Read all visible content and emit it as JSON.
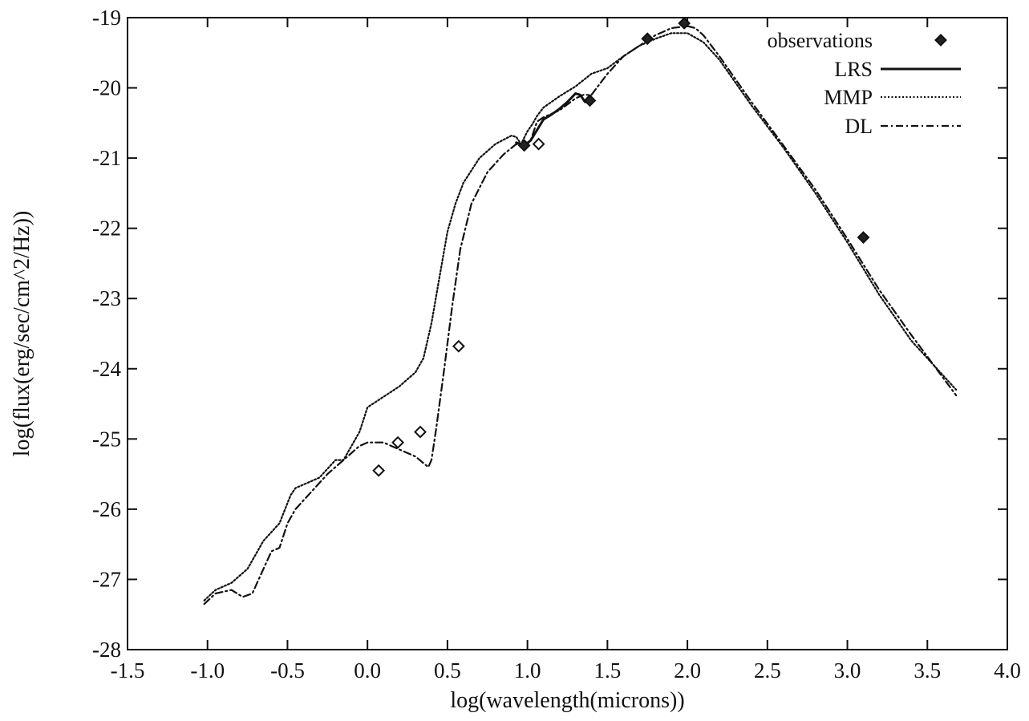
{
  "chart_data": {
    "type": "line",
    "title": "",
    "xlabel": "log(wavelength(microns))",
    "ylabel": "log(flux(erg/sec/cm^2/Hz))",
    "xlim": [
      -1.5,
      4.0
    ],
    "ylim": [
      -28,
      -19
    ],
    "xticks": [
      -1.5,
      -1.0,
      -0.5,
      0.0,
      0.5,
      1.0,
      1.5,
      2.0,
      2.5,
      3.0,
      3.5,
      4.0
    ],
    "xtick_labels": [
      "-1.5",
      "-1.0",
      "-0.5",
      "0.0",
      "0.5",
      "1.0",
      "1.5",
      "2.0",
      "2.5",
      "3.0",
      "3.5",
      "4.0"
    ],
    "yticks": [
      -19,
      -20,
      -21,
      -22,
      -23,
      -24,
      -25,
      -26,
      -27,
      -28
    ],
    "ytick_labels": [
      "-19",
      "-20",
      "-21",
      "-22",
      "-23",
      "-24",
      "-25",
      "-26",
      "-27",
      "-28"
    ],
    "grid": false,
    "legend_position": "top-right",
    "legend": [
      "observations",
      "LRS",
      "MMP",
      "DL"
    ],
    "series": [
      {
        "name": "observations",
        "kind": "scatter",
        "marker": "diamond",
        "x": [
          0.07,
          0.19,
          0.33,
          0.57,
          0.98,
          1.07,
          1.39,
          1.75,
          1.98,
          3.1
        ],
        "y": [
          -25.45,
          -25.05,
          -24.9,
          -23.68,
          -20.82,
          -20.8,
          -20.18,
          -19.3,
          -19.08,
          -22.13
        ],
        "filled": [
          false,
          false,
          false,
          false,
          true,
          false,
          true,
          true,
          true,
          true
        ]
      },
      {
        "name": "LRS",
        "kind": "line",
        "style": "solid",
        "x": [
          0.93,
          0.98,
          1.02,
          1.06,
          1.1,
          1.15,
          1.2,
          1.25,
          1.3,
          1.33,
          1.36
        ],
        "y": [
          -20.78,
          -20.82,
          -20.75,
          -20.6,
          -20.45,
          -20.38,
          -20.3,
          -20.2,
          -20.08,
          -20.1,
          -20.2
        ]
      },
      {
        "name": "MMP",
        "kind": "line",
        "style": "dotted",
        "x": [
          -1.02,
          -0.95,
          -0.85,
          -0.75,
          -0.65,
          -0.55,
          -0.48,
          -0.45,
          -0.4,
          -0.3,
          -0.2,
          -0.15,
          -0.05,
          0.0,
          0.1,
          0.2,
          0.25,
          0.3,
          0.35,
          0.4,
          0.45,
          0.5,
          0.55,
          0.6,
          0.7,
          0.8,
          0.9,
          0.93,
          0.96,
          1.0,
          1.03,
          1.06,
          1.1,
          1.2,
          1.3,
          1.4,
          1.5,
          1.6,
          1.7,
          1.8,
          1.9,
          2.0,
          2.1,
          2.2,
          2.4,
          2.6,
          2.8,
          3.0,
          3.2,
          3.4,
          3.68
        ],
        "y": [
          -27.3,
          -27.15,
          -27.05,
          -26.85,
          -26.45,
          -26.2,
          -25.8,
          -25.7,
          -25.65,
          -25.55,
          -25.3,
          -25.3,
          -24.9,
          -24.55,
          -24.4,
          -24.25,
          -24.15,
          -24.05,
          -23.85,
          -23.35,
          -22.7,
          -22.05,
          -21.65,
          -21.35,
          -21.0,
          -20.8,
          -20.68,
          -20.7,
          -20.8,
          -20.62,
          -20.52,
          -20.4,
          -20.28,
          -20.12,
          -19.98,
          -19.8,
          -19.72,
          -19.55,
          -19.4,
          -19.3,
          -19.22,
          -19.22,
          -19.35,
          -19.6,
          -20.25,
          -20.85,
          -21.5,
          -22.2,
          -22.95,
          -23.6,
          -24.3
        ]
      },
      {
        "name": "DL",
        "kind": "line",
        "style": "dash-dot",
        "x": [
          -1.02,
          -0.95,
          -0.85,
          -0.78,
          -0.72,
          -0.65,
          -0.6,
          -0.55,
          -0.5,
          -0.45,
          -0.35,
          -0.25,
          -0.15,
          -0.05,
          0.0,
          0.05,
          0.1,
          0.15,
          0.2,
          0.3,
          0.38,
          0.4,
          0.43,
          0.48,
          0.53,
          0.58,
          0.65,
          0.75,
          0.85,
          0.93,
          0.98,
          1.02,
          1.06,
          1.1,
          1.2,
          1.3,
          1.35,
          1.4,
          1.5,
          1.6,
          1.7,
          1.8,
          1.9,
          2.0,
          2.05,
          2.1,
          2.2,
          2.4,
          2.6,
          2.8,
          3.0,
          3.2,
          3.4,
          3.68
        ],
        "y": [
          -27.35,
          -27.2,
          -27.15,
          -27.25,
          -27.2,
          -26.85,
          -26.6,
          -26.55,
          -26.2,
          -26.0,
          -25.75,
          -25.5,
          -25.3,
          -25.1,
          -25.05,
          -25.05,
          -25.05,
          -25.1,
          -25.15,
          -25.25,
          -25.4,
          -25.3,
          -24.85,
          -24.0,
          -23.1,
          -22.3,
          -21.65,
          -21.2,
          -20.95,
          -20.8,
          -20.85,
          -20.75,
          -20.48,
          -20.42,
          -20.32,
          -20.15,
          -20.1,
          -20.1,
          -19.8,
          -19.55,
          -19.4,
          -19.25,
          -19.15,
          -19.12,
          -19.15,
          -19.25,
          -19.55,
          -20.2,
          -20.82,
          -21.45,
          -22.15,
          -22.88,
          -23.52,
          -24.38
        ]
      }
    ]
  }
}
